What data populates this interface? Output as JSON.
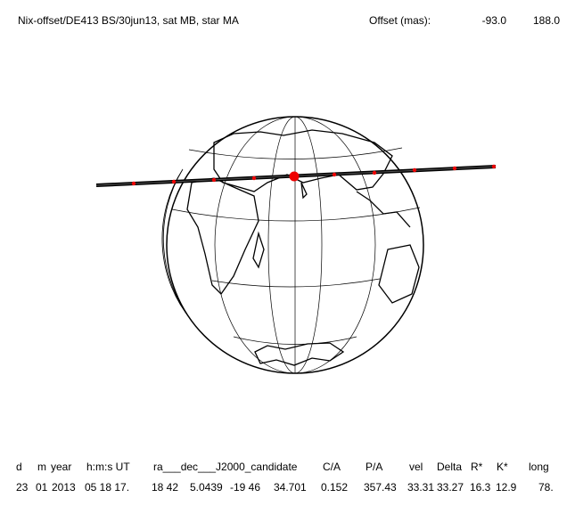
{
  "header": {
    "title": "Nix-offset/DE413 BS/30jun13, sat MB, star MA",
    "offset_label": "Offset (mas):",
    "offset_values": [
      "-93.0",
      "188.0"
    ]
  },
  "table": {
    "columns": [
      "d",
      "m",
      "year",
      "h:m:s UT",
      "ra___dec___J2000_candidate",
      "C/A",
      "P/A",
      "vel",
      "Delta",
      "R*",
      "K*",
      "long"
    ],
    "row": [
      "23",
      "01",
      "2013",
      "05 18 17.",
      "18 42",
      "5.0439",
      "-19 46",
      "34.701",
      "0.152",
      "357.43",
      "33.31",
      "33.27",
      "16.3",
      "12.9",
      "78."
    ]
  }
}
